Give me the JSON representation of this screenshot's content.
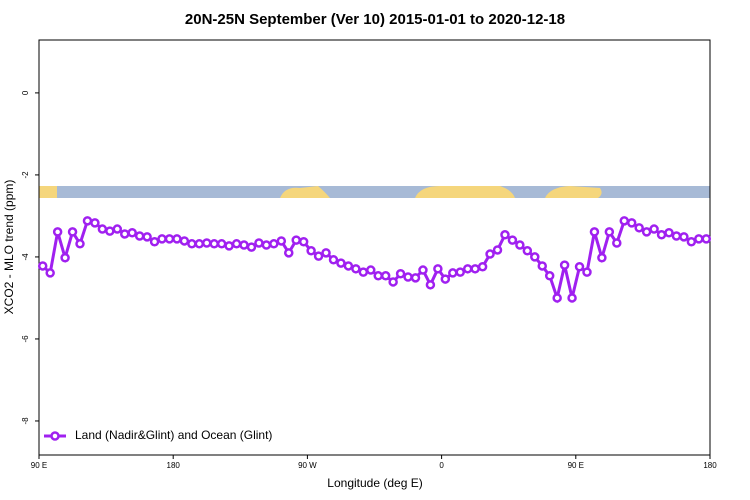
{
  "chart_data": {
    "type": "line",
    "title": "20N-25N September (Ver 10)   2015-01-01 to 2020-12-18",
    "x_label": "Longitude (deg E)",
    "y_label": "XCO2 - MLO trend (ppm)",
    "xlim": [
      90,
      540
    ],
    "xticks": [
      {
        "value": 90,
        "label": "90 E"
      },
      180,
      {
        "value": 270,
        "label": "90 W"
      },
      {
        "value": 360,
        "label": "0"
      },
      {
        "value": 450,
        "label": "90 E"
      },
      {
        "value": 540,
        "label": "180"
      }
    ],
    "ylim": [
      -8.83,
      1.29
    ],
    "yticks": [
      0,
      -2,
      -4,
      -6,
      -8
    ],
    "legend_position": "bottom-left",
    "x": [
      92.5,
      97.5,
      102.5,
      107.5,
      112.5,
      117.5,
      122.5,
      127.5,
      132.5,
      137.5,
      142.5,
      147.5,
      152.5,
      157.5,
      162.5,
      167.5,
      172.5,
      177.5,
      182.5,
      187.5,
      192.5,
      197.5,
      202.5,
      207.5,
      212.5,
      217.5,
      222.5,
      227.5,
      232.5,
      237.5,
      242.5,
      247.5,
      252.5,
      257.5,
      262.5,
      267.5,
      272.5,
      277.5,
      282.5,
      287.5,
      292.5,
      297.5,
      302.5,
      307.5,
      312.5,
      317.5,
      322.5,
      327.5,
      332.5,
      337.5,
      342.5,
      347.5,
      352.5,
      357.5,
      362.5,
      367.5,
      372.5,
      377.5,
      382.5,
      387.5,
      392.5,
      397.5,
      402.5,
      407.5,
      412.5,
      417.5,
      422.5,
      427.5,
      432.5,
      437.5,
      442.5,
      447.5,
      452.5,
      457.5,
      462.5,
      467.5,
      472.5,
      477.5,
      482.5,
      487.5,
      492.5,
      497.5,
      502.5,
      507.5,
      512.5,
      517.5,
      522.5,
      527.5,
      532.5,
      537.5
    ],
    "series": [
      {
        "name": "Land (Nadir&Glint) and Ocean (Glint)",
        "color": "#a020f0",
        "values": [
          -4.22,
          -4.39,
          -3.39,
          -4.02,
          -3.39,
          -3.68,
          -3.12,
          -3.17,
          -3.32,
          -3.37,
          -3.32,
          -3.44,
          -3.41,
          -3.49,
          -3.51,
          -3.63,
          -3.56,
          -3.56,
          -3.56,
          -3.61,
          -3.68,
          -3.68,
          -3.66,
          -3.68,
          -3.68,
          -3.73,
          -3.68,
          -3.71,
          -3.76,
          -3.66,
          -3.71,
          -3.68,
          -3.61,
          -3.9,
          -3.59,
          -3.63,
          -3.85,
          -3.98,
          -3.9,
          -4.07,
          -4.15,
          -4.22,
          -4.29,
          -4.37,
          -4.32,
          -4.46,
          -4.46,
          -4.61,
          -4.41,
          -4.49,
          -4.51,
          -4.32,
          -4.68,
          -4.29,
          -4.54,
          -4.39,
          -4.37,
          -4.29,
          -4.29,
          -4.24,
          -3.93,
          -3.83,
          -3.46,
          -3.59,
          -3.71,
          -3.85,
          -4.0,
          -4.22,
          -4.46,
          -5.0,
          -4.2,
          -5.0,
          -4.24,
          -4.37,
          -3.39,
          -4.02,
          -3.39,
          -3.66,
          -3.12,
          -3.17,
          -3.29,
          -3.39,
          -3.32,
          -3.46,
          -3.41,
          -3.49,
          -3.51,
          -3.63,
          -3.56,
          -3.56
        ]
      }
    ]
  }
}
